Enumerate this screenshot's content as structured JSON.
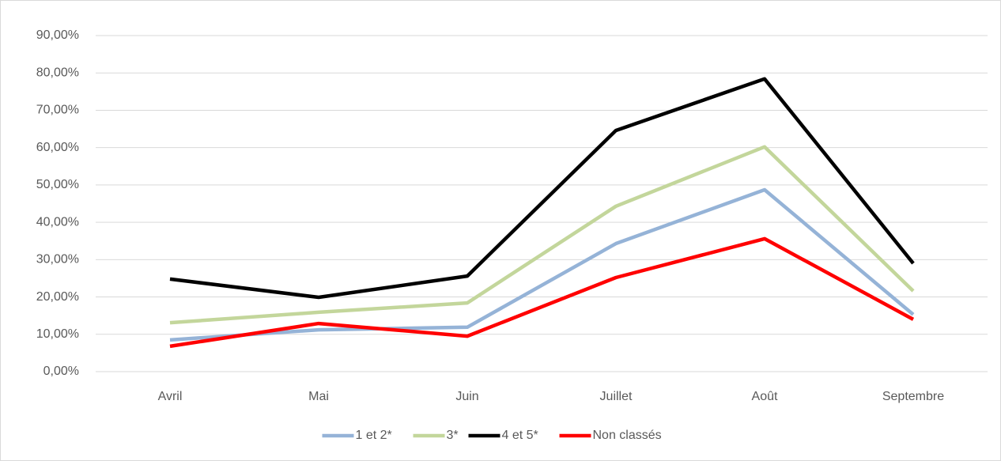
{
  "chart_data": {
    "type": "line",
    "categories": [
      "Avril",
      "Mai",
      "Juin",
      "Juillet",
      "Août",
      "Septembre"
    ],
    "series": [
      {
        "name": "1 et 2*",
        "color": "#95b3d7",
        "values": [
          8.5,
          11.2,
          11.9,
          34.3,
          48.7,
          15.3
        ]
      },
      {
        "name": "3*",
        "color": "#c3d69b",
        "values": [
          13.1,
          15.9,
          18.4,
          44.3,
          60.2,
          21.6
        ]
      },
      {
        "name": "4 et 5*",
        "color": "#000000",
        "values": [
          24.8,
          19.9,
          25.6,
          64.6,
          78.4,
          29.0
        ]
      },
      {
        "name": "Non classés",
        "color": "#ff0000",
        "values": [
          6.8,
          12.9,
          9.5,
          25.2,
          35.6,
          14.0
        ]
      }
    ],
    "ylim": [
      0,
      90
    ],
    "yticks": [
      {
        "value": 0,
        "label": "0,00%"
      },
      {
        "value": 10,
        "label": "10,00%"
      },
      {
        "value": 20,
        "label": "20,00%"
      },
      {
        "value": 30,
        "label": "30,00%"
      },
      {
        "value": 40,
        "label": "40,00%"
      },
      {
        "value": 50,
        "label": "50,00%"
      },
      {
        "value": 60,
        "label": "60,00%"
      },
      {
        "value": 70,
        "label": "70,00%"
      },
      {
        "value": 80,
        "label": "80,00%"
      },
      {
        "value": 90,
        "label": "90,00%"
      }
    ],
    "grid": true,
    "legend": "bottom"
  }
}
